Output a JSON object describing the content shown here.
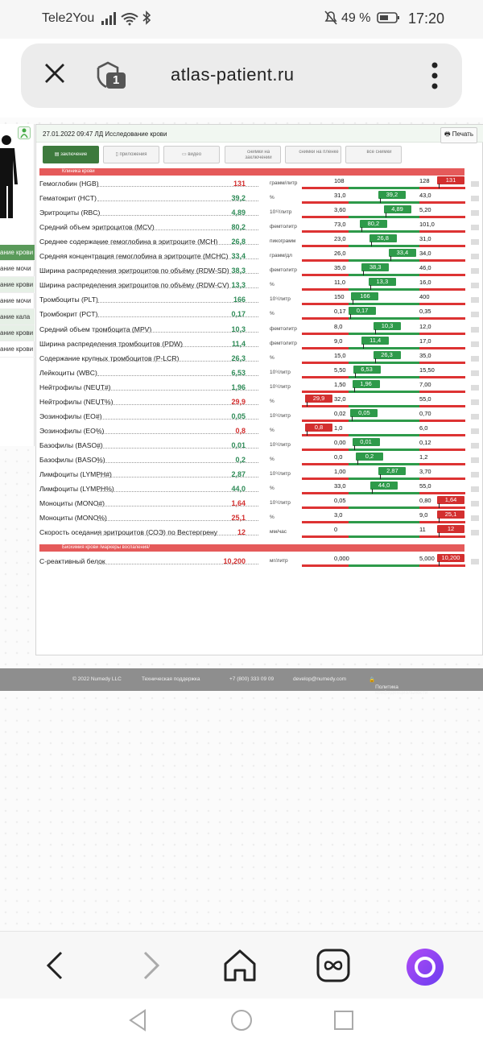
{
  "statusbar": {
    "carrier": "Tele2You",
    "battery": "49 %",
    "time": "17:20"
  },
  "browser": {
    "domain": "atlas-patient.ru",
    "tab_count": "1"
  },
  "header": {
    "date_title": "27.01.2022 09:47 ЛД Исследование крови",
    "print": "Печать"
  },
  "tabs": [
    {
      "label": "заключение"
    },
    {
      "label": "приложения"
    },
    {
      "label": "видео"
    },
    {
      "label": "снимки на заключении"
    },
    {
      "label": "снимки на пленке"
    },
    {
      "label": "все снимки"
    }
  ],
  "leftnav": [
    "ание крови",
    "ание мочи",
    "ание крови",
    "ание мочи",
    "ание кала",
    "ание крови",
    "ание крови"
  ],
  "sections": {
    "s1": "Клиника крови",
    "s2": "Биохимия крови /маркеры воспаления/"
  },
  "rows": [
    {
      "name": "Гемоглобин (HGB)",
      "value": "131",
      "unit": "грамм/литр",
      "lo": "108",
      "hi": "128",
      "st": "r"
    },
    {
      "name": "Гематокрит (HCT)",
      "value": "39,2",
      "unit": "%",
      "lo": "31,0",
      "hi": "43,0",
      "st": "g"
    },
    {
      "name": "Эритроциты (RBC)",
      "value": "4,89",
      "unit": "10¹²/литр",
      "lo": "3,60",
      "hi": "5,20",
      "st": "g"
    },
    {
      "name": "Средний объем эритроцитов (MCV)",
      "value": "80,2",
      "unit": "фемтолитр",
      "lo": "73,0",
      "hi": "101,0",
      "st": "g"
    },
    {
      "name": "Среднее содержание гемоглобина в эритроците (MCH)",
      "value": "26,8",
      "unit": "пикограмм",
      "lo": "23,0",
      "hi": "31,0",
      "st": "g"
    },
    {
      "name": "Средняя концентрация гемоглобина в эритроците (MCHC)",
      "value": "33,4",
      "unit": "грамм/дл",
      "lo": "26,0",
      "hi": "34,0",
      "st": "g"
    },
    {
      "name": "Ширина распределения эритроцитов по объёму (RDW-SD)",
      "value": "38,3",
      "unit": "фемтолитр",
      "lo": "35,0",
      "hi": "46,0",
      "st": "g"
    },
    {
      "name": "Ширина распределения эритроцитов по объёму (RDW-CV)",
      "value": "13,3",
      "unit": "%",
      "lo": "11,0",
      "hi": "16,0",
      "st": "g"
    },
    {
      "name": "Тромбоциты (PLT)",
      "value": "166",
      "unit": "10⁹/литр",
      "lo": "150",
      "hi": "400",
      "st": "g"
    },
    {
      "name": "Тромбокрит (PCT)",
      "value": "0,17",
      "unit": "%",
      "lo": "0,17",
      "hi": "0,35",
      "st": "g"
    },
    {
      "name": "Средний объем тромбоцита (MPV)",
      "value": "10,3",
      "unit": "фемтолитр",
      "lo": "8,0",
      "hi": "12,0",
      "st": "g"
    },
    {
      "name": "Ширина распределения тромбоцитов (PDW)",
      "value": "11,4",
      "unit": "фемтолитр",
      "lo": "9,0",
      "hi": "17,0",
      "st": "g"
    },
    {
      "name": "Содержание крупных тромбоцитов (P-LCR)",
      "value": "26,3",
      "unit": "%",
      "lo": "15,0",
      "hi": "35,0",
      "st": "g"
    },
    {
      "name": "Лейкоциты (WBC)",
      "value": "6,53",
      "unit": "10⁹/литр",
      "lo": "5,50",
      "hi": "15,50",
      "st": "g"
    },
    {
      "name": "Нейтрофилы (NEUT#)",
      "value": "1,96",
      "unit": "10⁹/литр",
      "lo": "1,50",
      "hi": "7,00",
      "st": "g"
    },
    {
      "name": "Нейтрофилы (NEUT%)",
      "value": "29,9",
      "unit": "%",
      "lo": "32,0",
      "hi": "55,0",
      "st": "rl"
    },
    {
      "name": "Эозинофилы (EO#)",
      "value": "0,05",
      "unit": "10⁹/литр",
      "lo": "0,02",
      "hi": "0,70",
      "st": "g"
    },
    {
      "name": "Эозинофилы (EO%)",
      "value": "0,8",
      "unit": "%",
      "lo": "1,0",
      "hi": "6,0",
      "st": "rl"
    },
    {
      "name": "Базофилы (BASO#)",
      "value": "0,01",
      "unit": "10⁹/литр",
      "lo": "0,00",
      "hi": "0,12",
      "st": "g"
    },
    {
      "name": "Базофилы (BASO%)",
      "value": "0,2",
      "unit": "%",
      "lo": "0,0",
      "hi": "1,2",
      "st": "g"
    },
    {
      "name": "Лимфоциты (LYMPH#)",
      "value": "2,87",
      "unit": "10⁹/литр",
      "lo": "1,00",
      "hi": "3,70",
      "st": "g"
    },
    {
      "name": "Лимфоциты (LYMPH%)",
      "value": "44,0",
      "unit": "%",
      "lo": "33,0",
      "hi": "55,0",
      "st": "g"
    },
    {
      "name": "Моноциты (MONO#)",
      "value": "1,64",
      "unit": "10⁹/литр",
      "lo": "0,05",
      "hi": "0,80",
      "st": "r"
    },
    {
      "name": "Моноциты (MONO%)",
      "value": "25,1",
      "unit": "%",
      "lo": "3,0",
      "hi": "9,0",
      "st": "r"
    },
    {
      "name": "Скорость оседания эритроцитов (СОЭ) по Вестергрену",
      "value": "12",
      "unit": "мм/час",
      "lo": "0",
      "hi": "11",
      "st": "r"
    }
  ],
  "rows2": [
    {
      "name": "С-реактивный белок",
      "value": "10,200",
      "unit": "мг/литр",
      "lo": "0,000",
      "hi": "5,000",
      "st": "r"
    }
  ],
  "footer": {
    "copy": "© 2022 Numedy LLC",
    "support": "Техническая поддержка",
    "phone": "+7 (800) 333 09 09",
    "email": "develop@numedy.com",
    "privacy": "Политика конфиденциальности"
  }
}
